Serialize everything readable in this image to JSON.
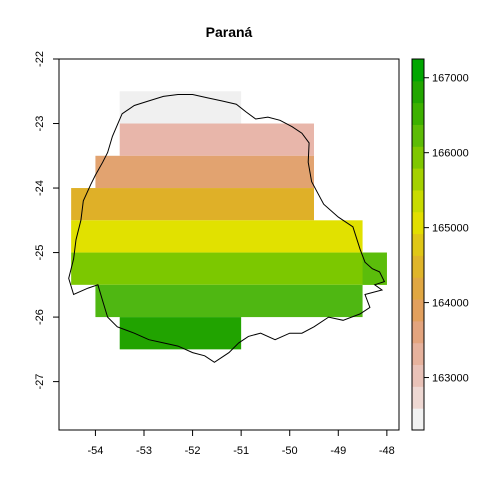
{
  "title": "Paraná",
  "chart_data": {
    "type": "heatmap",
    "title": "Paraná",
    "xlim": [
      -54.75,
      -47.75
    ],
    "ylim": [
      -27.75,
      -22.0
    ],
    "x_ticks": [
      -54,
      -53,
      -52,
      -51,
      -50,
      -49,
      -48
    ],
    "y_ticks": [
      -22,
      -23,
      -24,
      -25,
      -26,
      -27
    ],
    "cell_width": 0.5,
    "cell_height": 0.5,
    "rows": [
      {
        "y": [
          -23.0,
          -22.5
        ],
        "x": [
          -53.5,
          -51.0
        ],
        "value": 162450,
        "color": "#f0f0f0"
      },
      {
        "y": [
          -23.5,
          -23.0
        ],
        "x": [
          -53.5,
          -49.5
        ],
        "value": 162950,
        "color": "#e8b6aa"
      },
      {
        "y": [
          -24.0,
          -23.5
        ],
        "x": [
          -54.0,
          -49.5
        ],
        "value": 163600,
        "color": "#e2a370"
      },
      {
        "y": [
          -24.5,
          -24.0
        ],
        "x": [
          -54.5,
          -49.5
        ],
        "value": 164200,
        "color": "#dfb028"
      },
      {
        "y": [
          -25.0,
          -24.5
        ],
        "x": [
          -54.5,
          -48.5
        ],
        "value": 164950,
        "color": "#e1e100"
      },
      {
        "y": [
          -25.5,
          -25.0
        ],
        "x": [
          -54.5,
          -48.0
        ],
        "value": 165500,
        "color": "#7cc800",
        "extra": {
          "x": [
            -48.5,
            -48.0
          ],
          "color": "#5bbd0b"
        }
      },
      {
        "y": [
          -26.0,
          -25.5
        ],
        "x": [
          -54.0,
          -48.5
        ],
        "value": 166200,
        "color": "#4fb712"
      },
      {
        "y": [
          -26.5,
          -26.0
        ],
        "x": [
          -53.5,
          -51.0
        ],
        "value": 166700,
        "color": "#21a300"
      }
    ],
    "legend": {
      "range": [
        162300,
        167250
      ],
      "ticks": [
        163000,
        164000,
        165000,
        166000,
        167000
      ],
      "colors": [
        "#f2f2f2",
        "#eed8d3",
        "#e9c2b8",
        "#e6b29d",
        "#e3a47e",
        "#e2a05e",
        "#e0a742",
        "#dfb52a",
        "#dfc717",
        "#e2de00",
        "#c8db00",
        "#a4d100",
        "#7fc700",
        "#5dbc06",
        "#3db100",
        "#22a600",
        "#00a600"
      ]
    },
    "outline_name": "Paraná state border"
  }
}
